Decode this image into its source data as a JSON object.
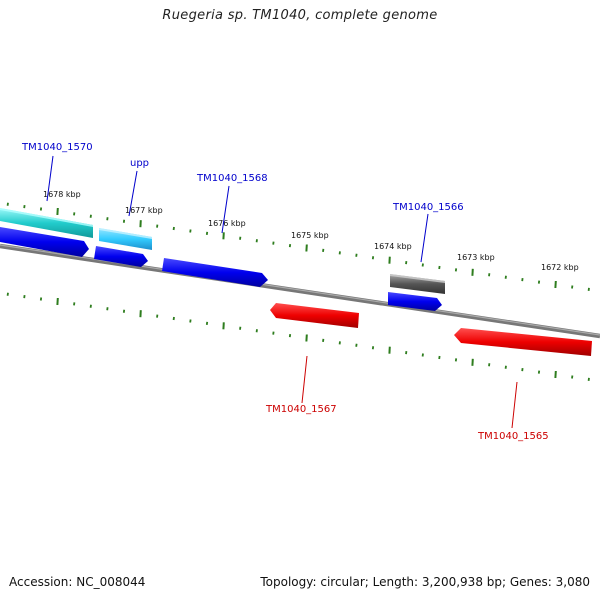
{
  "title": "Ruegeria sp. TM1040, complete genome",
  "footer": {
    "accession": "Accession: NC_008044",
    "summary": "Topology: circular; Length: 3,200,938 bp; Genes: 3,080"
  },
  "colors": {
    "background": "#ffffff",
    "backbone": "#808080",
    "tick": "#2e7d1e",
    "forward_gene": "#0000ee",
    "reverse_gene": "#ee0000",
    "rna_gene": "#00cccc",
    "upp_gene": "#33ccff",
    "pseudo_gene": "#555555",
    "label_blue": "#0000cc",
    "label_red": "#cc0000"
  },
  "tick_labels": [
    "1678 kbp",
    "1677 kbp",
    "1676 kbp",
    "1675 kbp",
    "1674 kbp",
    "1673 kbp",
    "1672 kbp"
  ],
  "gene_labels": [
    "TM1040_1570",
    "upp",
    "TM1040_1568",
    "TM1040_1566",
    "TM1040_1567",
    "TM1040_1565"
  ]
}
